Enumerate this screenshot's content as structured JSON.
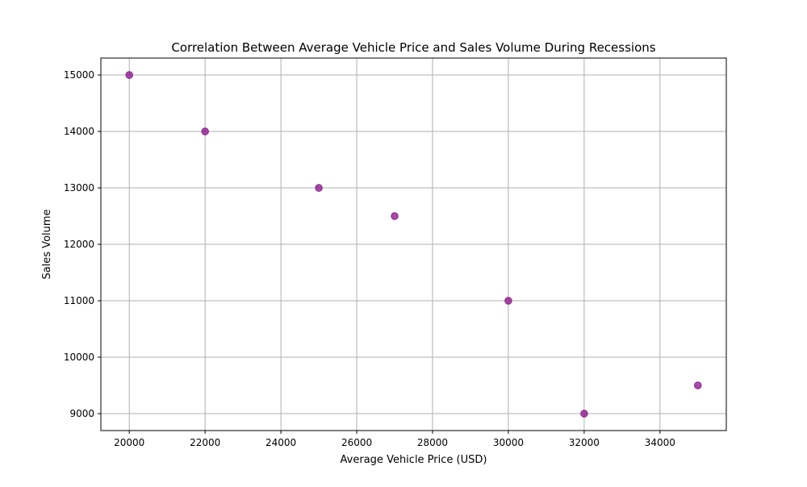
{
  "chart_data": {
    "type": "scatter",
    "title": "Correlation Between Average Vehicle Price and Sales Volume During Recessions",
    "xlabel": "Average Vehicle Price (USD)",
    "ylabel": "Sales Volume",
    "x": [
      20000,
      22000,
      25000,
      27000,
      30000,
      32000,
      35000
    ],
    "y": [
      15000,
      14000,
      13000,
      12500,
      11000,
      9000,
      9500
    ],
    "xlim": [
      19250,
      35750
    ],
    "ylim": [
      8700,
      15300
    ],
    "xticks": [
      20000,
      22000,
      24000,
      26000,
      28000,
      30000,
      32000,
      34000
    ],
    "yticks": [
      9000,
      10000,
      11000,
      12000,
      13000,
      14000,
      15000
    ],
    "grid": true,
    "marker_color": "#800080",
    "marker_alpha": 0.7
  }
}
